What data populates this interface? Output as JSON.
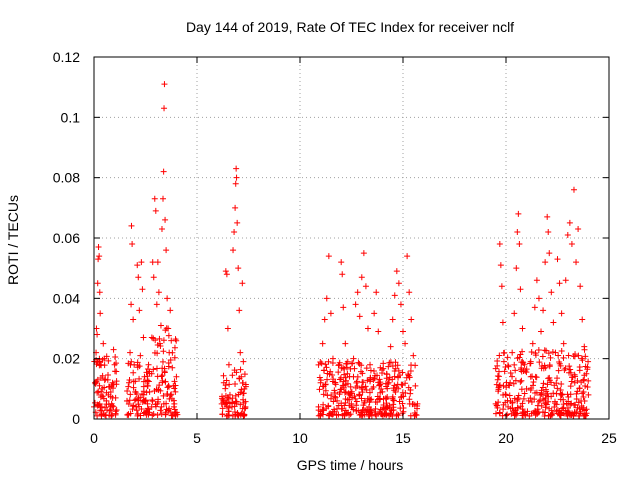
{
  "chart_data": {
    "type": "scatter",
    "title": "Day 144 of 2019, Rate Of TEC Index for receiver nclf",
    "xlabel": "GPS time / hours",
    "ylabel": "ROTI / TECUs",
    "xlim": [
      0,
      25
    ],
    "ylim": [
      0,
      0.12
    ],
    "x_ticks": [
      0,
      5,
      10,
      15,
      20,
      25
    ],
    "x_tick_labels": [
      "0",
      "5",
      "10",
      "15",
      "20",
      "25"
    ],
    "y_ticks": [
      0,
      0.02,
      0.04,
      0.06,
      0.08,
      0.1,
      0.12
    ],
    "y_tick_labels": [
      "0",
      "0.02",
      "0.04",
      "0.06",
      "0.08",
      "0.1",
      "0.12"
    ],
    "grid": true,
    "marker": "+",
    "color": "#ff0000",
    "series": [
      {
        "name": "ROTI",
        "points": [
          [
            0.0,
            0.004
          ],
          [
            0.05,
            0.012
          ],
          [
            0.1,
            0.022
          ],
          [
            0.12,
            0.03
          ],
          [
            0.15,
            0.028
          ],
          [
            0.18,
            0.045
          ],
          [
            0.2,
            0.053
          ],
          [
            0.22,
            0.057
          ],
          [
            0.25,
            0.054
          ],
          [
            0.28,
            0.042
          ],
          [
            0.3,
            0.035
          ],
          [
            0.32,
            0.018
          ],
          [
            0.35,
            0.009
          ],
          [
            0.38,
            0.004
          ],
          [
            0.4,
            0.01
          ],
          [
            0.45,
            0.025
          ],
          [
            0.5,
            0.02
          ],
          [
            0.6,
            0.006
          ],
          [
            0.7,
            0.008
          ],
          [
            0.8,
            0.004
          ],
          [
            0.9,
            0.012
          ],
          [
            0.95,
            0.023
          ],
          [
            1.0,
            0.018
          ],
          [
            1.05,
            0.007
          ],
          [
            1.1,
            0.003
          ],
          [
            1.6,
            0.006
          ],
          [
            1.7,
            0.012
          ],
          [
            1.75,
            0.022
          ],
          [
            1.8,
            0.038
          ],
          [
            1.82,
            0.064
          ],
          [
            1.85,
            0.058
          ],
          [
            1.9,
            0.033
          ],
          [
            1.95,
            0.018
          ],
          [
            2.0,
            0.009
          ],
          [
            2.05,
            0.004
          ],
          [
            2.1,
            0.051
          ],
          [
            2.15,
            0.047
          ],
          [
            2.2,
            0.036
          ],
          [
            2.25,
            0.021
          ],
          [
            2.3,
            0.052
          ],
          [
            2.35,
            0.043
          ],
          [
            2.4,
            0.027
          ],
          [
            2.45,
            0.014
          ],
          [
            2.5,
            0.006
          ],
          [
            2.6,
            0.005
          ],
          [
            2.7,
            0.009
          ],
          [
            2.8,
            0.015
          ],
          [
            2.85,
            0.052
          ],
          [
            2.9,
            0.047
          ],
          [
            2.95,
            0.073
          ],
          [
            3.0,
            0.069
          ],
          [
            3.05,
            0.038
          ],
          [
            3.1,
            0.052
          ],
          [
            3.15,
            0.042
          ],
          [
            3.2,
            0.025
          ],
          [
            3.25,
            0.031
          ],
          [
            3.3,
            0.063
          ],
          [
            3.35,
            0.073
          ],
          [
            3.38,
            0.082
          ],
          [
            3.4,
            0.103
          ],
          [
            3.42,
            0.111
          ],
          [
            3.45,
            0.066
          ],
          [
            3.5,
            0.056
          ],
          [
            3.55,
            0.04
          ],
          [
            3.6,
            0.03
          ],
          [
            3.65,
            0.022
          ],
          [
            3.7,
            0.036
          ],
          [
            3.75,
            0.026
          ],
          [
            3.8,
            0.017
          ],
          [
            3.85,
            0.011
          ],
          [
            3.9,
            0.005
          ],
          [
            3.95,
            0.009
          ],
          [
            4.0,
            0.014
          ],
          [
            6.2,
            0.005
          ],
          [
            6.3,
            0.012
          ],
          [
            6.4,
            0.049
          ],
          [
            6.45,
            0.048
          ],
          [
            6.5,
            0.03
          ],
          [
            6.55,
            0.018
          ],
          [
            6.6,
            0.008
          ],
          [
            6.7,
            0.004
          ],
          [
            6.75,
            0.056
          ],
          [
            6.8,
            0.062
          ],
          [
            6.85,
            0.07
          ],
          [
            6.88,
            0.078
          ],
          [
            6.9,
            0.083
          ],
          [
            6.92,
            0.08
          ],
          [
            6.95,
            0.065
          ],
          [
            7.0,
            0.05
          ],
          [
            7.05,
            0.036
          ],
          [
            7.1,
            0.022
          ],
          [
            7.15,
            0.014
          ],
          [
            7.2,
            0.045
          ],
          [
            7.25,
            0.019
          ],
          [
            7.3,
            0.01
          ],
          [
            7.35,
            0.004
          ],
          [
            10.9,
            0.004
          ],
          [
            11.0,
            0.012
          ],
          [
            11.1,
            0.025
          ],
          [
            11.2,
            0.033
          ],
          [
            11.3,
            0.04
          ],
          [
            11.4,
            0.054
          ],
          [
            11.5,
            0.035
          ],
          [
            11.6,
            0.02
          ],
          [
            11.7,
            0.012
          ],
          [
            11.8,
            0.006
          ],
          [
            11.9,
            0.018
          ],
          [
            12.0,
            0.052
          ],
          [
            12.05,
            0.048
          ],
          [
            12.1,
            0.037
          ],
          [
            12.2,
            0.025
          ],
          [
            12.3,
            0.015
          ],
          [
            12.4,
            0.008
          ],
          [
            12.5,
            0.004
          ],
          [
            12.6,
            0.02
          ],
          [
            12.7,
            0.038
          ],
          [
            12.8,
            0.042
          ],
          [
            12.9,
            0.034
          ],
          [
            13.0,
            0.047
          ],
          [
            13.1,
            0.055
          ],
          [
            13.2,
            0.044
          ],
          [
            13.3,
            0.03
          ],
          [
            13.4,
            0.018
          ],
          [
            13.5,
            0.01
          ],
          [
            13.6,
            0.035
          ],
          [
            13.7,
            0.042
          ],
          [
            13.8,
            0.029
          ],
          [
            13.9,
            0.017
          ],
          [
            14.0,
            0.009
          ],
          [
            14.2,
            0.004
          ],
          [
            14.3,
            0.012
          ],
          [
            14.4,
            0.024
          ],
          [
            14.5,
            0.033
          ],
          [
            14.6,
            0.041
          ],
          [
            14.7,
            0.049
          ],
          [
            14.8,
            0.045
          ],
          [
            14.9,
            0.038
          ],
          [
            15.0,
            0.029
          ],
          [
            15.1,
            0.025
          ],
          [
            15.2,
            0.054
          ],
          [
            15.3,
            0.042
          ],
          [
            15.4,
            0.033
          ],
          [
            15.5,
            0.021
          ],
          [
            15.6,
            0.011
          ],
          [
            15.7,
            0.005
          ],
          [
            19.5,
            0.005
          ],
          [
            19.6,
            0.013
          ],
          [
            19.7,
            0.058
          ],
          [
            19.75,
            0.051
          ],
          [
            19.8,
            0.044
          ],
          [
            19.85,
            0.032
          ],
          [
            19.9,
            0.019
          ],
          [
            20.0,
            0.008
          ],
          [
            20.1,
            0.004
          ],
          [
            20.2,
            0.012
          ],
          [
            20.3,
            0.022
          ],
          [
            20.4,
            0.035
          ],
          [
            20.5,
            0.05
          ],
          [
            20.55,
            0.062
          ],
          [
            20.6,
            0.068
          ],
          [
            20.65,
            0.058
          ],
          [
            20.7,
            0.043
          ],
          [
            20.8,
            0.03
          ],
          [
            20.9,
            0.018
          ],
          [
            21.0,
            0.01
          ],
          [
            21.1,
            0.006
          ],
          [
            21.2,
            0.014
          ],
          [
            21.3,
            0.025
          ],
          [
            21.4,
            0.037
          ],
          [
            21.5,
            0.046
          ],
          [
            21.6,
            0.04
          ],
          [
            21.7,
            0.029
          ],
          [
            21.8,
            0.036
          ],
          [
            21.9,
            0.052
          ],
          [
            22.0,
            0.067
          ],
          [
            22.05,
            0.062
          ],
          [
            22.1,
            0.055
          ],
          [
            22.2,
            0.042
          ],
          [
            22.3,
            0.032
          ],
          [
            22.4,
            0.022
          ],
          [
            22.5,
            0.053
          ],
          [
            22.6,
            0.045
          ],
          [
            22.7,
            0.035
          ],
          [
            22.8,
            0.025
          ],
          [
            22.9,
            0.046
          ],
          [
            23.0,
            0.061
          ],
          [
            23.1,
            0.065
          ],
          [
            23.2,
            0.058
          ],
          [
            23.3,
            0.076
          ],
          [
            23.4,
            0.052
          ],
          [
            23.5,
            0.063
          ],
          [
            23.6,
            0.044
          ],
          [
            23.7,
            0.033
          ],
          [
            23.8,
            0.024
          ],
          [
            23.9,
            0.015
          ],
          [
            24.0,
            0.008
          ]
        ]
      }
    ],
    "dense_clusters": [
      {
        "x_range": [
          0.0,
          1.1
        ],
        "y_max": 0.02
      },
      {
        "x_range": [
          1.6,
          2.7
        ],
        "y_max": 0.018
      },
      {
        "x_range": [
          2.8,
          4.05
        ],
        "y_max": 0.03
      },
      {
        "x_range": [
          6.2,
          6.6
        ],
        "y_max": 0.014
      },
      {
        "x_range": [
          6.7,
          7.4
        ],
        "y_max": 0.016
      },
      {
        "x_range": [
          10.9,
          15.7
        ],
        "y_max": 0.018
      },
      {
        "x_range": [
          19.5,
          24.0
        ],
        "y_max": 0.022
      }
    ]
  }
}
